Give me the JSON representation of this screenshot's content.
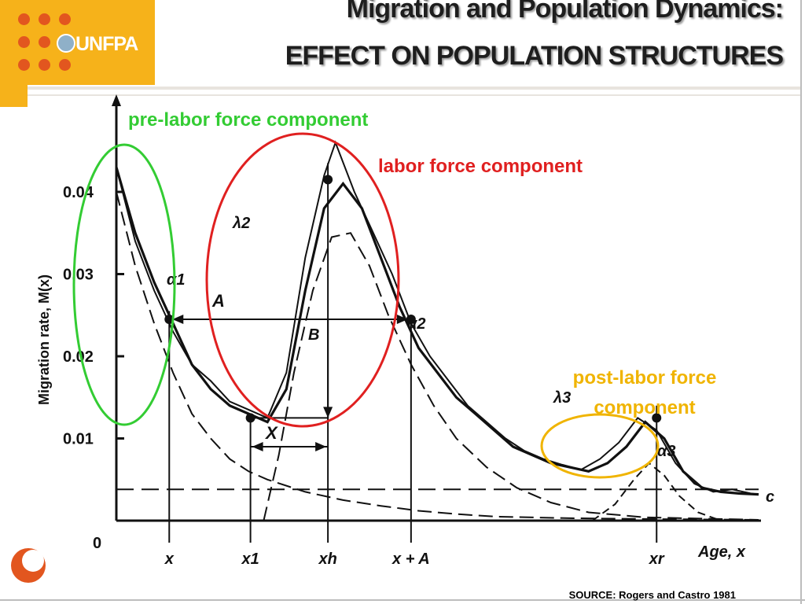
{
  "header": {
    "logo_text": "UNFPA",
    "title_line1": "Migration and Population Dynamics:",
    "title_line2": "EFFECT ON POPULATION STRUCTURES"
  },
  "footer": {
    "source": "SOURCE: Rogers and Castro 1981"
  },
  "annotations": {
    "pre_labor": "pre-labor force component",
    "labor": "labor force component",
    "post_labor": "post-labor force component",
    "pre_labor_color": "#33cc33",
    "labor_color": "#e02020",
    "post_labor_color": "#f0b400"
  },
  "chart_data": {
    "type": "line",
    "ylabel": "Migration rate, M(x)",
    "xlabel": "Age, x",
    "y_ticks": [
      "0",
      "0.01",
      "0.02",
      "0.03",
      "0.04"
    ],
    "ylim": [
      0,
      0.046
    ],
    "x_ticks": [
      "x",
      "x1",
      "xh",
      "x + A",
      "xr"
    ],
    "symbols": {
      "alpha1": "α1",
      "alpha2": "α2",
      "alpha3": "α3",
      "lambda2": "λ2",
      "lambda3": "λ3",
      "A": "A",
      "B": "B",
      "X": "X",
      "c": "c"
    },
    "series": [
      {
        "name": "",
        "values": [
          [
            0.0,
            0.043
          ],
          [
            0.5,
            0.035
          ],
          [
            1.0,
            0.029
          ],
          [
            1.5,
            0.024
          ],
          [
            2.0,
            0.019
          ],
          [
            2.5,
            0.016
          ],
          [
            3.0,
            0.014
          ],
          [
            3.5,
            0.013
          ],
          [
            4.0,
            0.012
          ],
          [
            4.5,
            0.016
          ],
          [
            5.0,
            0.028
          ],
          [
            5.5,
            0.038
          ],
          [
            6.0,
            0.041
          ],
          [
            6.5,
            0.038
          ],
          [
            7.0,
            0.032
          ],
          [
            7.5,
            0.026
          ],
          [
            8.0,
            0.021
          ],
          [
            8.5,
            0.018
          ],
          [
            9.0,
            0.015
          ],
          [
            9.5,
            0.013
          ],
          [
            10.0,
            0.011
          ],
          [
            10.5,
            0.009
          ],
          [
            11.0,
            0.008
          ],
          [
            11.5,
            0.007
          ],
          [
            12.0,
            0.0065
          ],
          [
            12.5,
            0.006
          ],
          [
            13.0,
            0.007
          ],
          [
            13.5,
            0.009
          ],
          [
            14.0,
            0.012
          ],
          [
            14.5,
            0.01
          ],
          [
            15.0,
            0.006
          ],
          [
            15.5,
            0.004
          ],
          [
            16.0,
            0.0035
          ],
          [
            16.5,
            0.0033
          ],
          [
            17.0,
            0.0032
          ]
        ]
      },
      {
        "name": "",
        "values": [
          [
            0.0,
            0.043
          ],
          [
            0.5,
            0.034
          ],
          [
            1.0,
            0.028
          ],
          [
            1.5,
            0.023
          ],
          [
            2.0,
            0.019
          ],
          [
            2.5,
            0.017
          ],
          [
            3.0,
            0.0145
          ],
          [
            3.5,
            0.0135
          ],
          [
            4.0,
            0.0125
          ],
          [
            4.5,
            0.018
          ],
          [
            5.0,
            0.032
          ],
          [
            5.5,
            0.042
          ],
          [
            5.8,
            0.046
          ],
          [
            6.3,
            0.04
          ],
          [
            6.8,
            0.035
          ],
          [
            7.3,
            0.03
          ],
          [
            7.8,
            0.024
          ],
          [
            8.3,
            0.02
          ],
          [
            8.8,
            0.017
          ],
          [
            9.3,
            0.014
          ],
          [
            9.8,
            0.012
          ],
          [
            10.3,
            0.01
          ],
          [
            10.8,
            0.0085
          ],
          [
            11.3,
            0.0075
          ],
          [
            11.8,
            0.0068
          ],
          [
            12.3,
            0.0062
          ],
          [
            12.8,
            0.0075
          ],
          [
            13.3,
            0.0095
          ],
          [
            13.8,
            0.0125
          ],
          [
            14.3,
            0.011
          ],
          [
            14.8,
            0.007
          ],
          [
            15.3,
            0.0045
          ],
          [
            15.8,
            0.0035
          ],
          [
            16.3,
            0.0038
          ],
          [
            16.8,
            0.0033
          ],
          [
            17.0,
            0.0032
          ]
        ]
      },
      {
        "name": "",
        "values": [
          [
            0.0,
            0.04
          ],
          [
            0.5,
            0.031
          ],
          [
            1.0,
            0.024
          ],
          [
            1.5,
            0.018
          ],
          [
            2.0,
            0.013
          ],
          [
            2.5,
            0.01
          ],
          [
            3.0,
            0.0075
          ],
          [
            3.5,
            0.006
          ],
          [
            4.0,
            0.005
          ],
          [
            5.0,
            0.0035
          ],
          [
            6.0,
            0.0025
          ],
          [
            7.0,
            0.0018
          ],
          [
            8.0,
            0.0012
          ],
          [
            9.0,
            0.0008
          ],
          [
            10.0,
            0.0005
          ],
          [
            12.0,
            0.0003
          ],
          [
            14.0,
            0.0002
          ],
          [
            17.0,
            0.0001
          ]
        ]
      },
      {
        "name": "",
        "values": [
          [
            3.9,
            0.0
          ],
          [
            4.3,
            0.008
          ],
          [
            4.7,
            0.018
          ],
          [
            5.2,
            0.028
          ],
          [
            5.7,
            0.0345
          ],
          [
            6.2,
            0.035
          ],
          [
            6.7,
            0.031
          ],
          [
            7.2,
            0.025
          ],
          [
            7.8,
            0.019
          ],
          [
            8.4,
            0.014
          ],
          [
            9.0,
            0.01
          ],
          [
            9.8,
            0.0065
          ],
          [
            10.6,
            0.004
          ],
          [
            11.5,
            0.0022
          ],
          [
            12.5,
            0.001
          ],
          [
            14.0,
            0.0004
          ],
          [
            17.0,
            0.0001
          ]
        ]
      },
      {
        "name": "",
        "values": [
          [
            12.6,
            0.0
          ],
          [
            13.2,
            0.002
          ],
          [
            13.7,
            0.005
          ],
          [
            14.1,
            0.007
          ],
          [
            14.5,
            0.0055
          ],
          [
            14.9,
            0.003
          ],
          [
            15.4,
            0.001
          ],
          [
            16.0,
            0.0
          ]
        ]
      },
      {
        "name": "",
        "values": [
          [
            0.0,
            0.0038
          ],
          [
            17.0,
            0.0038
          ]
        ]
      }
    ]
  }
}
